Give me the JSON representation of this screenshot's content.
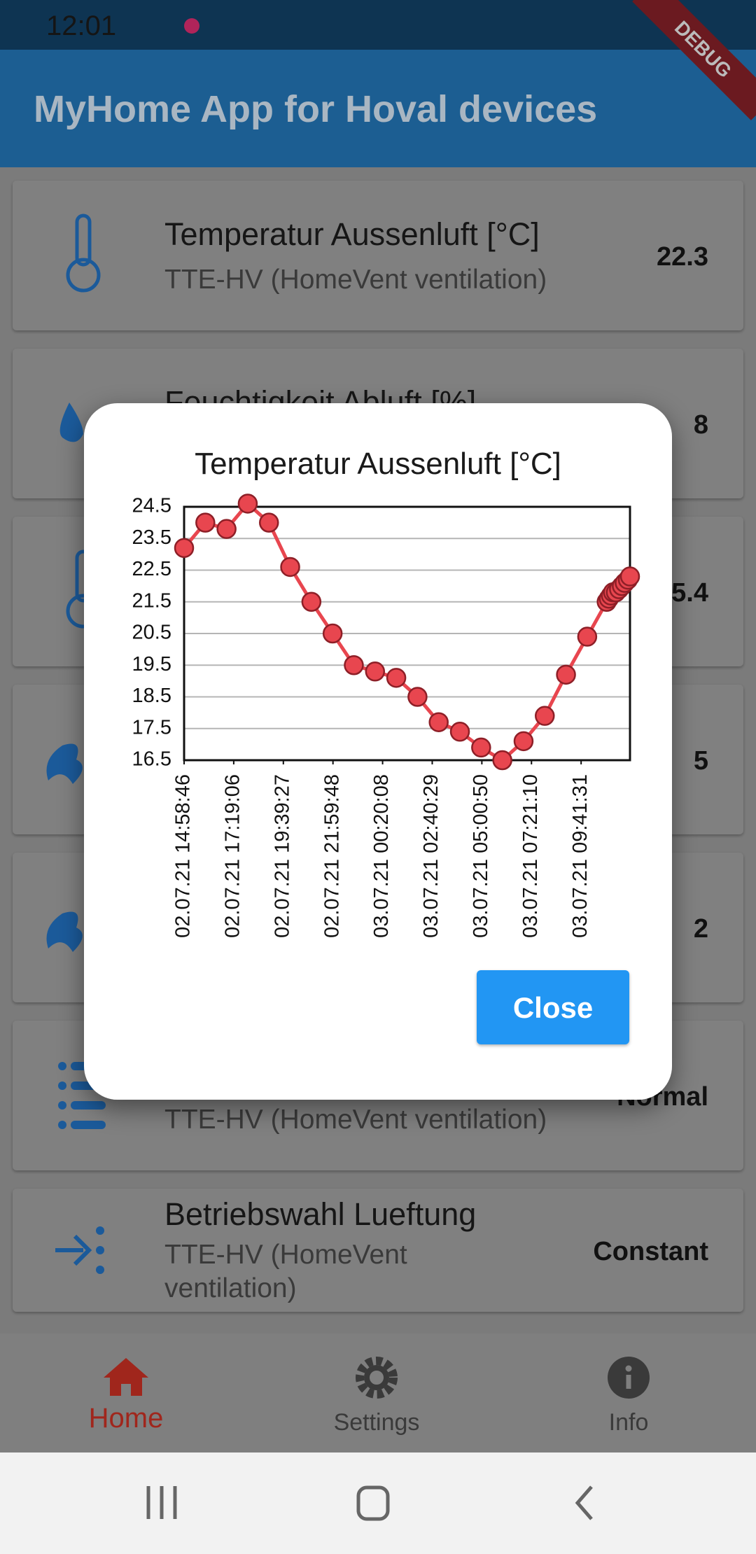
{
  "status_bar": {
    "time": "12:01"
  },
  "debug_banner": "DEBUG",
  "app_bar": {
    "title": "MyHome App for Hoval devices"
  },
  "cards": [
    {
      "title": "Temperatur Aussenluft [°C]",
      "subtitle": [
        "TTE-HV (HomeVent ventilation)"
      ],
      "value": "22.3"
    },
    {
      "title": "Feuchtigkeit Abluft [%]",
      "value": "8"
    },
    {
      "value": "5.4"
    },
    {
      "value": "5"
    },
    {
      "value": "2"
    },
    {
      "subtitle": [
        "TTE-HV (HomeVent ventilation)"
      ],
      "value": "Normal"
    },
    {
      "title": "Betriebswahl Lueftung",
      "subtitle": [
        "TTE-HV (HomeVent",
        "ventilation)"
      ],
      "value": "Constant"
    }
  ],
  "nav": [
    "Home",
    "Settings",
    "Info"
  ],
  "dialog": {
    "close": "Close"
  },
  "chart_data": {
    "type": "line",
    "title": "Temperatur Aussenluft [°C]",
    "color": "#e8464f",
    "grid": "y",
    "x": [
      "02.07.21 14:58:46",
      "02.07.21 15:58:46",
      "02.07.21 16:58:46",
      "02.07.21 17:58:46",
      "02.07.21 18:58:46",
      "02.07.21 19:58:46",
      "02.07.21 20:58:46",
      "02.07.21 21:58:46",
      "02.07.21 22:58:46",
      "02.07.21 23:58:46",
      "03.07.21 00:58:46",
      "03.07.21 01:58:46",
      "03.07.21 02:58:46",
      "03.07.21 03:58:46",
      "03.07.21 04:58:46",
      "03.07.21 05:58:46",
      "03.07.21 06:58:46",
      "03.07.21 07:58:46",
      "03.07.21 08:58:46",
      "03.07.21 09:58:46",
      "03.07.21 10:53:46",
      "03.07.21 10:59:46",
      "03.07.21 11:05:46",
      "03.07.21 11:11:46",
      "03.07.21 11:19:46",
      "03.07.21 11:28:46",
      "03.07.21 11:36:46",
      "03.07.21 11:44:46",
      "03.07.21 11:53:46",
      "03.07.21 11:59:46"
    ],
    "values": [
      23.2,
      24.0,
      23.8,
      24.6,
      24.0,
      22.6,
      21.5,
      20.5,
      19.5,
      19.3,
      19.1,
      18.5,
      17.7,
      17.4,
      16.9,
      16.5,
      17.1,
      17.9,
      19.2,
      20.4,
      21.5,
      21.6,
      21.7,
      21.8,
      21.8,
      21.9,
      22.0,
      22.1,
      22.2,
      22.3
    ],
    "xlim": [
      "02.07.21 14:58:46",
      "03.07.21 11:59:46"
    ],
    "xticks": [
      "02.07.21 14:58:46",
      "02.07.21 17:19:06",
      "02.07.21 19:39:27",
      "02.07.21 21:59:48",
      "03.07.21 00:20:08",
      "03.07.21 02:40:29",
      "03.07.21 05:00:50",
      "03.07.21 07:21:10",
      "03.07.21 09:41:31"
    ],
    "ylim": [
      16.5,
      24.5
    ],
    "yticks": [
      16.5,
      17.5,
      18.5,
      19.5,
      20.5,
      21.5,
      22.5,
      23.5,
      24.5
    ]
  }
}
